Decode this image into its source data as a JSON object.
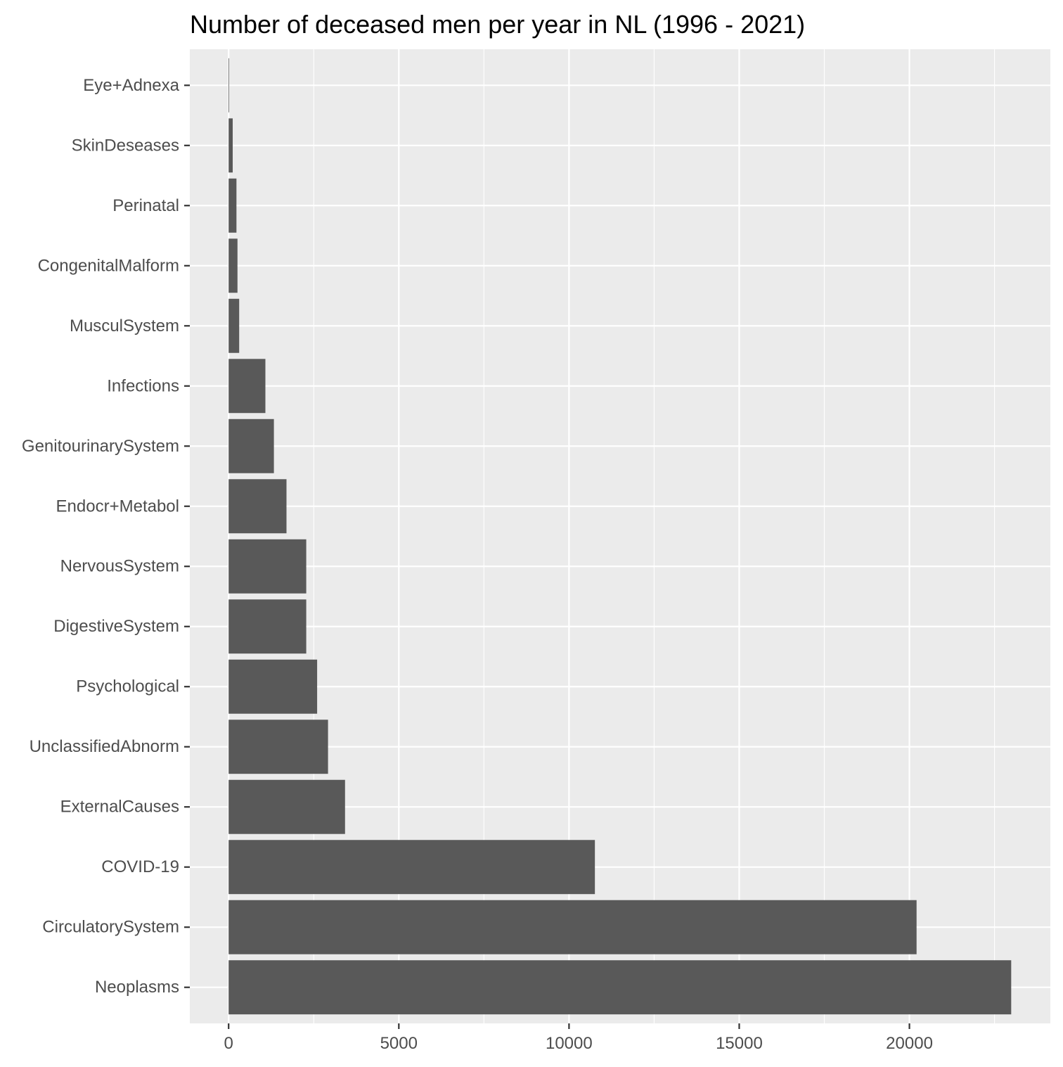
{
  "chart_data": {
    "type": "bar",
    "orientation": "horizontal",
    "title": "Number of deceased men per year in NL (1996 - 2021)",
    "xlabel": "",
    "ylabel": "",
    "categories": [
      "Eye+Adnexa",
      "SkinDeseases",
      "Perinatal",
      "CongenitalMalform",
      "MusculSystem",
      "Infections",
      "GenitourinarySystem",
      "Endocr+Metabol",
      "NervousSystem",
      "DigestiveSystem",
      "Psychological",
      "UnclassifiedAbnorm",
      "ExternalCauses",
      "COVID-19",
      "CirculatorySystem",
      "Neoplasms"
    ],
    "values": [
      15,
      120,
      230,
      260,
      310,
      1080,
      1330,
      1700,
      2280,
      2280,
      2600,
      2920,
      3420,
      10760,
      20210,
      22990
    ],
    "xlim": [
      -1140,
      24140
    ],
    "xticks": [
      0,
      5000,
      10000,
      15000,
      20000
    ],
    "xtick_labels": [
      "0",
      "5000",
      "10000",
      "15000",
      "20000"
    ],
    "grid": true,
    "legend": "none",
    "colors": {
      "panel_background": "#ebebeb",
      "grid_major": "#ffffff",
      "bar_fill": "#595959",
      "tick_label": "#4d4d4d",
      "tick_mark": "#333333",
      "title": "#000000"
    }
  }
}
